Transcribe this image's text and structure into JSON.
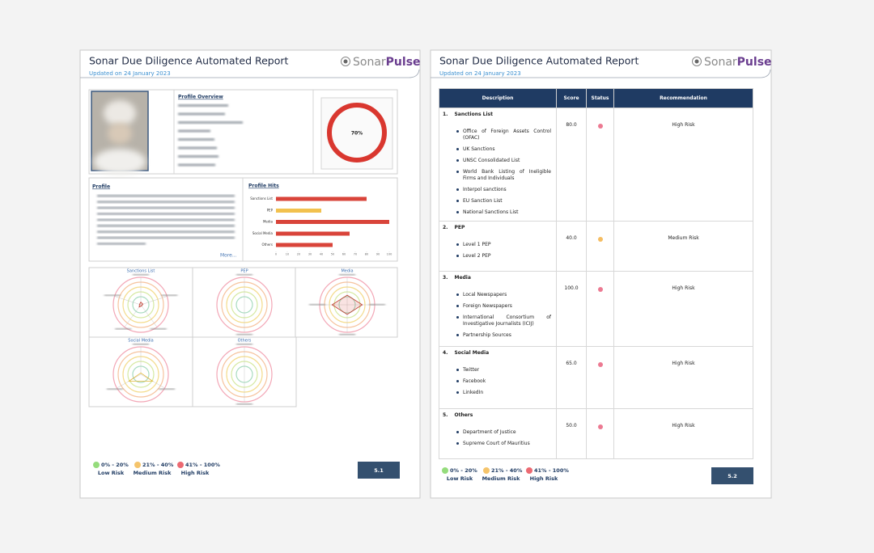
{
  "header": {
    "title": "Sonar Due Diligence Automated Report",
    "updated": "Updated on 24 January 2023",
    "logo": [
      "Sonar",
      "Pulse"
    ]
  },
  "legend": [
    {
      "range": "0% - 20%",
      "label": "Low Risk",
      "color": "#95dc7c"
    },
    {
      "range": "21% - 40%",
      "label": "Medium Risk",
      "color": "#f5c46b"
    },
    {
      "range": "41% - 100%",
      "label": "High Risk",
      "color": "#ec6a72"
    }
  ],
  "page1": {
    "profile_overview_heading": "Profile Overview",
    "overall_score": "70%",
    "profile_heading": "Profile",
    "more": "More...",
    "profile_hits": {
      "type": "bar",
      "title": "Profile Hits",
      "categories": [
        "Sanctions List",
        "PEP",
        "Media",
        "Social Media",
        "Others"
      ],
      "values": [
        80,
        40,
        100,
        65,
        50
      ],
      "colors": [
        "#d9443a",
        "#f2c14e",
        "#d9443a",
        "#d9443a",
        "#d9443a"
      ],
      "xlim": [
        0,
        100
      ],
      "xticks": [
        0,
        10,
        20,
        30,
        40,
        50,
        60,
        70,
        80,
        90,
        100
      ]
    },
    "radar_titles": [
      "Sanctions List",
      "PEP",
      "Media",
      "Social Media",
      "Others"
    ],
    "page_number": "5.1"
  },
  "page2": {
    "table": {
      "columns": [
        "Description",
        "Score",
        "Status",
        "Recommendation"
      ],
      "rows": [
        {
          "number": "1.",
          "title": "Sanctions List",
          "items": [
            "Office of Foreign Assets Control (OFAC)",
            "UK Sanctions",
            "UNSC Consolidated List",
            "World Bank Listing of Ineligible Firms and Individuals",
            "Interpol sanctions",
            "EU Sanction List",
            "National Sanctions List"
          ],
          "score": "80.0",
          "status_color": "#ec7a92",
          "recommendation": "High Risk"
        },
        {
          "number": "2.",
          "title": "PEP",
          "items": [
            "Level 1 PEP",
            "Level 2 PEP"
          ],
          "score": "40.0",
          "status_color": "#f5bd62",
          "recommendation": "Medium Risk"
        },
        {
          "number": "3.",
          "title": "Media",
          "items": [
            "Local Newspapers",
            "Foreign Newspapers",
            "International Consortium of Investigative Journalists (ICIJ)",
            "Partnership Sources"
          ],
          "score": "100.0",
          "status_color": "#ec7a92",
          "recommendation": "High Risk"
        },
        {
          "number": "4.",
          "title": "Social Media",
          "items": [
            "Twitter",
            "Facebook",
            "LinkedIn"
          ],
          "score": "65.0",
          "status_color": "#ec7a92",
          "recommendation": "High Risk"
        },
        {
          "number": "5.",
          "title": "Others",
          "items": [
            "Department of Justice",
            "Supreme Court of Mauritius"
          ],
          "score": "50.0",
          "status_color": "#ec7a92",
          "recommendation": "High Risk"
        }
      ]
    },
    "page_number": "5.2"
  }
}
